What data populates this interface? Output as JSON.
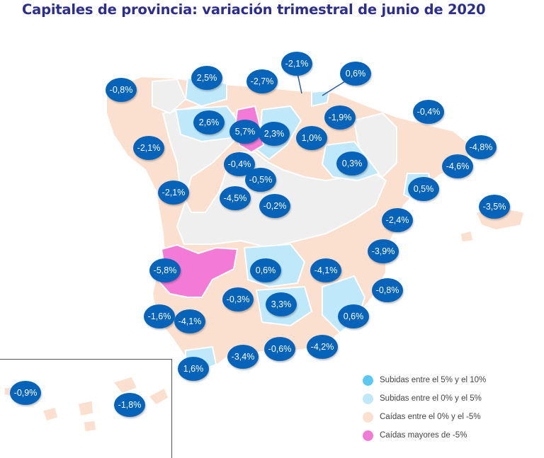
{
  "title": "Capitales de provincia: variación trimestral de junio de 2020",
  "colors": {
    "up_5_10": "#5bc8f2",
    "up_0_5": "#bfe8fa",
    "down_0_5": "#fbe0cf",
    "down_over_5": "#f47ad8",
    "no_data": "#efefef",
    "badge": "#0563b9"
  },
  "legend": [
    {
      "label": "Subidas entre el 5% y el 10%",
      "color": "#5bc8f2"
    },
    {
      "label": "Subidas entre el 0% y el 5%",
      "color": "#bfe8fa"
    },
    {
      "label": "Caídas entre el 0% y el -5%",
      "color": "#fbe0cf"
    },
    {
      "label": "Caídas mayores de -5%",
      "color": "#f47ad8"
    }
  ],
  "values": [
    "-0,8%",
    "2,5%",
    "-2,7%",
    "-2,1%",
    "0,6%",
    "-1,9%",
    "-0,4%",
    "2,6%",
    "5,7%",
    "2,3%",
    "1,0%",
    "-2,1%",
    "-0,4%",
    "0,3%",
    "-4,8%",
    "-4,6%",
    "-0,5%",
    "-2,1%",
    "-4,5%",
    "-0,2%",
    "0,5%",
    "-3,5%",
    "-2,4%",
    "-3,9%",
    "-5,8%",
    "0,6%",
    "-4,1%",
    "-0,8%",
    "-0,3%",
    "3,3%",
    "-1,6%",
    "-4,1%",
    "0,6%",
    "-3,4%",
    "-0,6%",
    "-4,2%",
    "1,6%",
    "-0,9%",
    "-1,8%"
  ]
}
